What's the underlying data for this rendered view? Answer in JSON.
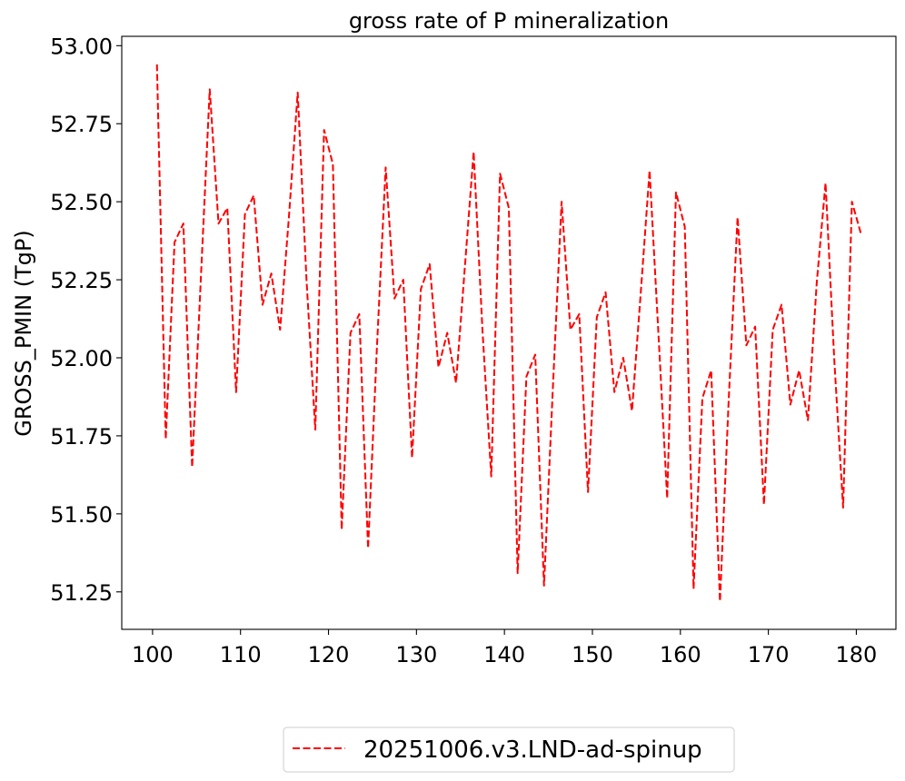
{
  "chart_data": {
    "type": "line",
    "title": "gross rate of P mineralization",
    "xlabel": "",
    "ylabel": "GROSS_PMIN (TgP)",
    "xlim": [
      96.5,
      184.5
    ],
    "ylim": [
      51.13,
      53.03
    ],
    "xticks": [
      100,
      110,
      120,
      130,
      140,
      150,
      160,
      170,
      180
    ],
    "xtick_labels": [
      "100",
      "110",
      "120",
      "130",
      "140",
      "150",
      "160",
      "170",
      "180"
    ],
    "yticks": [
      51.25,
      51.5,
      51.75,
      52.0,
      52.25,
      52.5,
      52.75,
      53.0
    ],
    "ytick_labels": [
      "51.25",
      "51.50",
      "51.75",
      "52.00",
      "52.25",
      "52.50",
      "52.75",
      "53.00"
    ],
    "grid": false,
    "legend_position": "below",
    "series": [
      {
        "name": "20251006.v3.LND-ad-spinup",
        "color": "#ff0000",
        "line_style": "dashed",
        "x": [
          100.5,
          101.5,
          102.5,
          103.5,
          104.5,
          105.5,
          106.5,
          107.5,
          108.5,
          109.5,
          110.5,
          111.5,
          112.5,
          113.5,
          114.5,
          115.5,
          116.5,
          117.5,
          118.5,
          119.5,
          120.5,
          121.5,
          122.5,
          123.5,
          124.5,
          125.5,
          126.5,
          127.5,
          128.5,
          129.5,
          130.5,
          131.5,
          132.5,
          133.5,
          134.5,
          135.5,
          136.5,
          137.5,
          138.5,
          139.5,
          140.5,
          141.5,
          142.5,
          143.5,
          144.5,
          145.5,
          146.5,
          147.5,
          148.5,
          149.5,
          150.5,
          151.5,
          152.5,
          153.5,
          154.5,
          155.5,
          156.5,
          157.5,
          158.5,
          159.5,
          160.5,
          161.5,
          162.5,
          163.5,
          164.5,
          165.5,
          166.5,
          167.5,
          168.5,
          169.5,
          170.5,
          171.5,
          172.5,
          173.5,
          174.5,
          175.5,
          176.5,
          177.5,
          178.5,
          179.5,
          180.5
        ],
        "y": [
          52.94,
          51.74,
          52.37,
          52.43,
          51.65,
          52.26,
          52.86,
          52.43,
          52.48,
          51.89,
          52.46,
          52.52,
          52.17,
          52.27,
          52.09,
          52.45,
          52.85,
          52.25,
          51.77,
          52.73,
          52.62,
          51.45,
          52.08,
          52.14,
          51.39,
          52.03,
          52.61,
          52.19,
          52.25,
          51.68,
          52.22,
          52.3,
          51.97,
          52.08,
          51.92,
          52.29,
          52.66,
          52.09,
          51.62,
          52.59,
          52.48,
          51.31,
          51.94,
          52.01,
          51.27,
          51.9,
          52.5,
          52.09,
          52.14,
          51.57,
          52.13,
          52.21,
          51.89,
          52.0,
          51.83,
          52.21,
          52.6,
          52.08,
          51.55,
          52.53,
          52.42,
          51.26,
          51.87,
          51.96,
          51.22,
          51.87,
          52.45,
          52.04,
          52.1,
          51.53,
          52.09,
          52.17,
          51.85,
          51.96,
          51.8,
          52.24,
          52.56,
          51.99,
          51.52,
          52.5,
          52.4
        ]
      }
    ]
  }
}
